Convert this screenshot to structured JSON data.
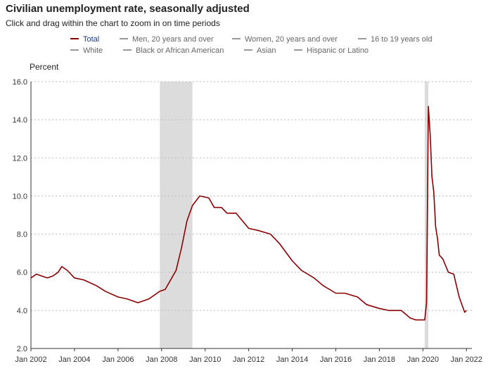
{
  "header": {
    "title": "Civilian unemployment rate, seasonally adjusted",
    "subtitle": "Click and drag within the chart to zoom in on time periods"
  },
  "legend": [
    {
      "label": "Total",
      "active": true
    },
    {
      "label": "Men, 20 years and over",
      "active": false
    },
    {
      "label": "Women, 20 years and over",
      "active": false
    },
    {
      "label": "16 to 19 years old",
      "active": false
    },
    {
      "label": "White",
      "active": false
    },
    {
      "label": "Black or African American",
      "active": false
    },
    {
      "label": "Asian",
      "active": false
    },
    {
      "label": "Hispanic or Latino",
      "active": false
    }
  ],
  "colors": {
    "series": "#8b0000",
    "recession": "#dcdcdc",
    "active_legend_text": "#1a3a8a"
  },
  "chart_data": {
    "type": "line",
    "title": "Civilian unemployment rate, seasonally adjusted",
    "ylabel": "Percent",
    "xlabel": "",
    "ylim": [
      2.0,
      16.0
    ],
    "xlim": [
      "2002-01",
      "2022-04"
    ],
    "y_ticks": [
      "2.0",
      "4.0",
      "6.0",
      "8.0",
      "10.0",
      "12.0",
      "14.0",
      "16.0"
    ],
    "x_ticks": [
      "Jan 2002",
      "Jan 2004",
      "Jan 2006",
      "Jan 2008",
      "Jan 2010",
      "Jan 2012",
      "Jan 2014",
      "Jan 2016",
      "Jan 2018",
      "Jan 2020",
      "Jan 2022"
    ],
    "grid": "horizontal dotted",
    "recessions": [
      [
        "2007-12",
        "2009-06"
      ],
      [
        "2020-02",
        "2020-04"
      ]
    ],
    "series": [
      {
        "name": "Total",
        "points": [
          [
            "2002-01",
            5.7
          ],
          [
            "2002-04",
            5.9
          ],
          [
            "2002-07",
            5.8
          ],
          [
            "2002-10",
            5.7
          ],
          [
            "2003-01",
            5.8
          ],
          [
            "2003-04",
            6.0
          ],
          [
            "2003-06",
            6.3
          ],
          [
            "2003-09",
            6.1
          ],
          [
            "2004-01",
            5.7
          ],
          [
            "2004-06",
            5.6
          ],
          [
            "2005-01",
            5.3
          ],
          [
            "2005-06",
            5.0
          ],
          [
            "2006-01",
            4.7
          ],
          [
            "2006-06",
            4.6
          ],
          [
            "2006-12",
            4.4
          ],
          [
            "2007-06",
            4.6
          ],
          [
            "2007-12",
            5.0
          ],
          [
            "2008-03",
            5.1
          ],
          [
            "2008-06",
            5.6
          ],
          [
            "2008-09",
            6.1
          ],
          [
            "2008-12",
            7.3
          ],
          [
            "2009-03",
            8.7
          ],
          [
            "2009-06",
            9.5
          ],
          [
            "2009-10",
            10.0
          ],
          [
            "2010-03",
            9.9
          ],
          [
            "2010-06",
            9.4
          ],
          [
            "2010-10",
            9.4
          ],
          [
            "2011-01",
            9.1
          ],
          [
            "2011-06",
            9.1
          ],
          [
            "2012-01",
            8.3
          ],
          [
            "2012-06",
            8.2
          ],
          [
            "2013-01",
            8.0
          ],
          [
            "2013-06",
            7.5
          ],
          [
            "2014-01",
            6.6
          ],
          [
            "2014-06",
            6.1
          ],
          [
            "2015-01",
            5.7
          ],
          [
            "2015-06",
            5.3
          ],
          [
            "2016-01",
            4.9
          ],
          [
            "2016-06",
            4.9
          ],
          [
            "2017-01",
            4.7
          ],
          [
            "2017-06",
            4.3
          ],
          [
            "2018-01",
            4.1
          ],
          [
            "2018-06",
            4.0
          ],
          [
            "2019-01",
            4.0
          ],
          [
            "2019-06",
            3.6
          ],
          [
            "2019-09",
            3.5
          ],
          [
            "2020-02",
            3.5
          ],
          [
            "2020-03",
            4.4
          ],
          [
            "2020-04",
            14.7
          ],
          [
            "2020-05",
            13.2
          ],
          [
            "2020-06",
            11.0
          ],
          [
            "2020-07",
            10.2
          ],
          [
            "2020-08",
            8.4
          ],
          [
            "2020-09",
            7.8
          ],
          [
            "2020-10",
            6.9
          ],
          [
            "2020-12",
            6.7
          ],
          [
            "2021-03",
            6.0
          ],
          [
            "2021-06",
            5.9
          ],
          [
            "2021-09",
            4.7
          ],
          [
            "2021-12",
            3.9
          ],
          [
            "2022-01",
            4.0
          ]
        ]
      }
    ]
  }
}
